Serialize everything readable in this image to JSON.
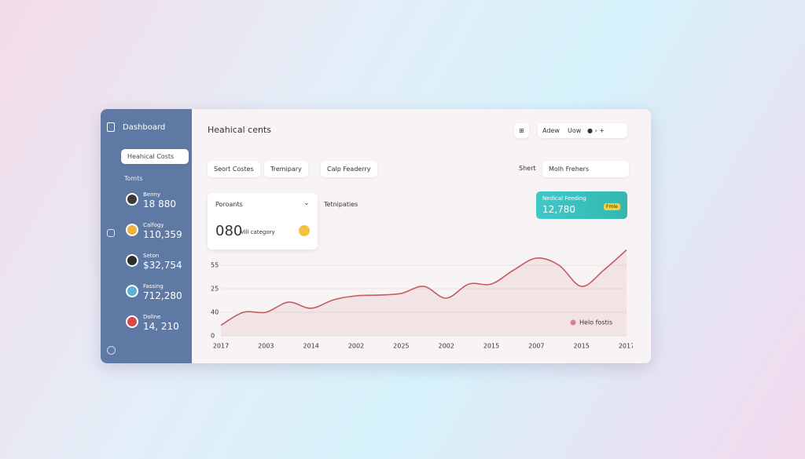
{
  "sidebar": {
    "title": "Dashboard",
    "button": "Heahical Costs",
    "section": "Tomts",
    "items": [
      {
        "name": "Benny",
        "value": "18 880"
      },
      {
        "name": "Calfogy",
        "value": "110,359"
      },
      {
        "name": "Seton",
        "value": "$32,754"
      },
      {
        "name": "Fassing",
        "value": "712,280"
      },
      {
        "name": "Dollne",
        "value": "14, 210"
      }
    ]
  },
  "header": {
    "title": "Heahical cents",
    "toolbar": [
      "Adew",
      "Uow"
    ]
  },
  "filters": {
    "left": [
      "Seort Costes",
      "Tremipary",
      "Calp Feaderry"
    ],
    "right": [
      "Shert",
      "Molh Frehers"
    ]
  },
  "summary": {
    "label": "Poroants",
    "value": "080",
    "caption": "Vill category",
    "side_label": "Tetnipaties"
  },
  "highlight": {
    "label": "Nedical Feeding",
    "value": "12,780",
    "badge": "Fmle"
  },
  "chart_data": {
    "type": "line",
    "categories": [
      "2017",
      null,
      "2003",
      null,
      "2014",
      null,
      "2002",
      null,
      "2025",
      null,
      "2002",
      null,
      "2015",
      null,
      "2007",
      null,
      "2015",
      null,
      "2017"
    ],
    "series": [
      {
        "name": "Helo fostis",
        "color": "#c65a5c",
        "values": [
          4.5,
          10,
          10,
          14.3,
          11.7,
          15.3,
          17,
          17.3,
          18,
          21,
          16,
          22,
          22,
          28,
          33,
          30,
          21,
          28,
          36.5
        ]
      }
    ],
    "ylim": [
      0,
      40
    ],
    "yticks": [
      0,
      {
        "value": 10,
        "label": "40"
      },
      {
        "value": 20,
        "label": "25"
      },
      {
        "value": 30,
        "label": "55"
      }
    ],
    "grid": true,
    "legend": "lower right"
  }
}
